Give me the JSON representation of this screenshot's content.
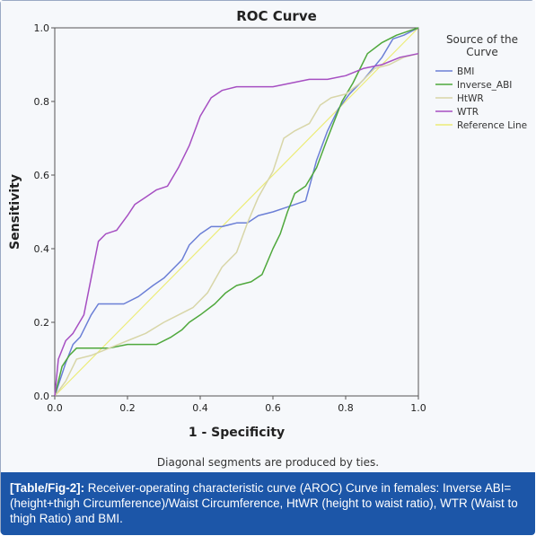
{
  "caption": {
    "tag": "[Table/Fig-2]:",
    "text": " Receiver-operating characteristic curve (AROC) Curve in females: Inverse ABI=(height+thigh Circumference)/Waist Circumference, HtWR (height to waist ratio), WTR (Waist to thigh Ratio) and BMI."
  },
  "note": "Diagonal segments are produced by ties.",
  "colors": {
    "BMI": "#6b7fd6",
    "Inverse_ABI": "#4fa83c",
    "HtWR": "#d8d6a8",
    "WTR": "#a64fc2",
    "Reference Line": "#ecec78",
    "frame": "#555555",
    "panel": "#f6f8fb"
  },
  "chart_data": {
    "type": "line",
    "title": "ROC Curve",
    "xlabel": "1 - Specificity",
    "ylabel": "Sensitivity",
    "xlim": [
      0,
      1
    ],
    "ylim": [
      0,
      1
    ],
    "xticks": [
      "0.0",
      "0.2",
      "0.4",
      "0.6",
      "0.8",
      "1.0"
    ],
    "yticks": [
      "0.0",
      "0.2",
      "0.4",
      "0.6",
      "0.8",
      "1.0"
    ],
    "grid": false,
    "legend": {
      "title": "Source of the Curve",
      "placement": "right",
      "entries": [
        "BMI",
        "Inverse_ABI",
        "HtWR",
        "WTR",
        "Reference Line"
      ]
    },
    "series": [
      {
        "name": "BMI",
        "x": [
          0,
          0.03,
          0.05,
          0.07,
          0.08,
          0.1,
          0.12,
          0.15,
          0.19,
          0.23,
          0.27,
          0.3,
          0.33,
          0.35,
          0.37,
          0.4,
          0.43,
          0.46,
          0.5,
          0.53,
          0.56,
          0.6,
          0.63,
          0.66,
          0.69,
          0.72,
          0.75,
          0.78,
          0.81,
          0.85,
          0.9,
          0.93,
          0.96,
          1.0
        ],
        "y": [
          0,
          0.09,
          0.14,
          0.16,
          0.18,
          0.22,
          0.25,
          0.25,
          0.25,
          0.27,
          0.3,
          0.32,
          0.35,
          0.37,
          0.41,
          0.44,
          0.46,
          0.46,
          0.47,
          0.47,
          0.49,
          0.5,
          0.51,
          0.52,
          0.53,
          0.64,
          0.72,
          0.78,
          0.82,
          0.86,
          0.92,
          0.97,
          0.98,
          1.0
        ]
      },
      {
        "name": "Inverse_ABI",
        "x": [
          0,
          0.02,
          0.04,
          0.06,
          0.1,
          0.15,
          0.2,
          0.24,
          0.28,
          0.32,
          0.35,
          0.37,
          0.4,
          0.44,
          0.47,
          0.5,
          0.54,
          0.57,
          0.6,
          0.62,
          0.64,
          0.66,
          0.69,
          0.72,
          0.75,
          0.79,
          0.82,
          0.86,
          0.9,
          0.94,
          0.97,
          1.0
        ],
        "y": [
          0,
          0.08,
          0.11,
          0.13,
          0.13,
          0.13,
          0.14,
          0.14,
          0.14,
          0.16,
          0.18,
          0.2,
          0.22,
          0.25,
          0.28,
          0.3,
          0.31,
          0.33,
          0.4,
          0.44,
          0.5,
          0.55,
          0.57,
          0.62,
          0.7,
          0.8,
          0.85,
          0.93,
          0.96,
          0.98,
          0.99,
          1.0
        ]
      },
      {
        "name": "HtWR",
        "x": [
          0,
          0.03,
          0.06,
          0.1,
          0.15,
          0.2,
          0.25,
          0.3,
          0.34,
          0.38,
          0.42,
          0.46,
          0.5,
          0.53,
          0.56,
          0.6,
          0.63,
          0.66,
          0.7,
          0.73,
          0.76,
          0.8,
          0.84,
          0.88,
          0.92,
          0.96,
          1.0
        ],
        "y": [
          0,
          0.04,
          0.1,
          0.11,
          0.13,
          0.15,
          0.17,
          0.2,
          0.22,
          0.24,
          0.28,
          0.35,
          0.39,
          0.47,
          0.54,
          0.61,
          0.7,
          0.72,
          0.74,
          0.79,
          0.81,
          0.82,
          0.85,
          0.89,
          0.9,
          0.92,
          0.93
        ]
      },
      {
        "name": "WTR",
        "x": [
          0,
          0.01,
          0.03,
          0.05,
          0.08,
          0.1,
          0.12,
          0.14,
          0.17,
          0.2,
          0.22,
          0.25,
          0.28,
          0.31,
          0.34,
          0.37,
          0.4,
          0.43,
          0.46,
          0.5,
          0.55,
          0.6,
          0.65,
          0.7,
          0.75,
          0.8,
          0.85,
          0.9,
          0.95,
          1.0
        ],
        "y": [
          0,
          0.1,
          0.15,
          0.17,
          0.22,
          0.32,
          0.42,
          0.44,
          0.45,
          0.49,
          0.52,
          0.54,
          0.56,
          0.57,
          0.62,
          0.68,
          0.76,
          0.81,
          0.83,
          0.84,
          0.84,
          0.84,
          0.85,
          0.86,
          0.86,
          0.87,
          0.89,
          0.9,
          0.92,
          0.93
        ]
      },
      {
        "name": "Reference Line",
        "x": [
          0,
          1
        ],
        "y": [
          0,
          1
        ]
      }
    ]
  }
}
